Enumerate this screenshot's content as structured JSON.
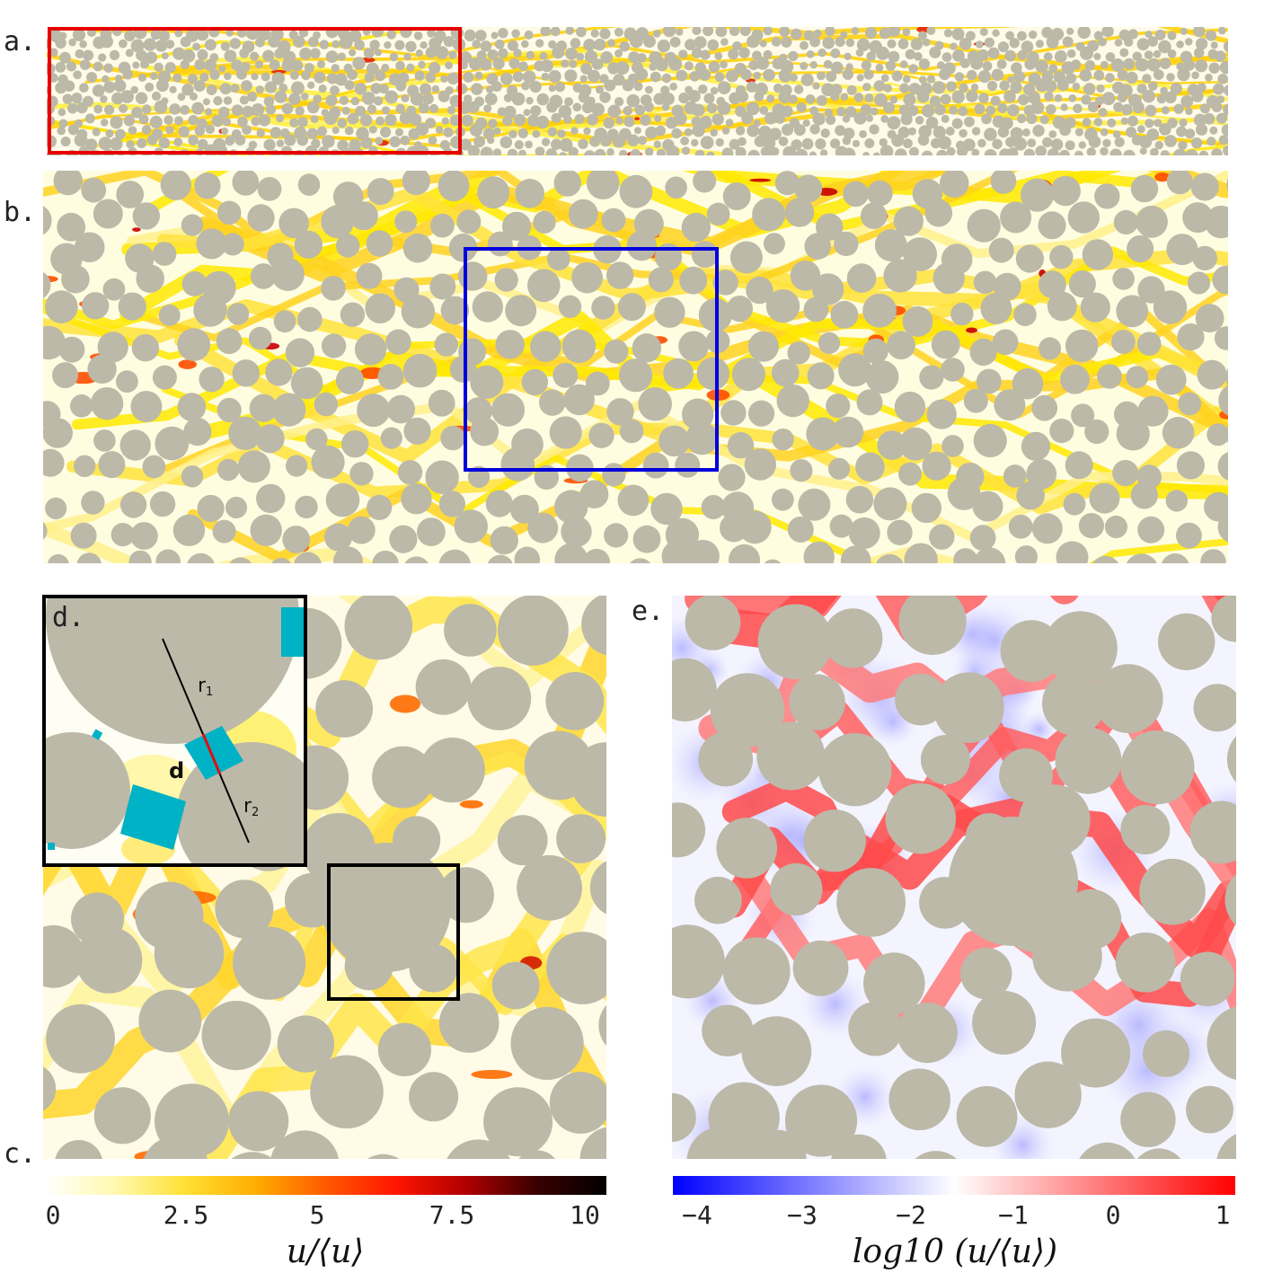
{
  "panel_labels": {
    "a": "a.",
    "b": "b.",
    "c": "c.",
    "d": "d.",
    "e": "e."
  },
  "inset_labels": {
    "r1": "r",
    "r1_sub": "1",
    "r2": "r",
    "r2_sub": "2",
    "d": "d"
  },
  "colorbar_left": {
    "ticks": [
      "0",
      "2.5",
      "5",
      "7.5",
      "10"
    ],
    "label": "u/⟨u⟩",
    "colors": [
      "#ffffff",
      "#fff9b0",
      "#ffe135",
      "#ffae00",
      "#ff5a00",
      "#ff1500",
      "#b00000",
      "#3a0000",
      "#000000"
    ]
  },
  "colorbar_right": {
    "ticks": [
      "−4",
      "−3",
      "−2",
      "−1",
      "0",
      "1"
    ],
    "label": "log10 (u/⟨u⟩)",
    "colors": [
      "#0000ff",
      "#ffffff",
      "#ff0000"
    ]
  },
  "colors": {
    "grain": "#bcb9a8",
    "flow_field": "#fff06a",
    "hot_channel": "#ff3a00",
    "panel_a_box": "#e60000",
    "panel_b_box": "#0000dd",
    "panel_c_box": "#000000",
    "contact": "#00b2c5"
  }
}
